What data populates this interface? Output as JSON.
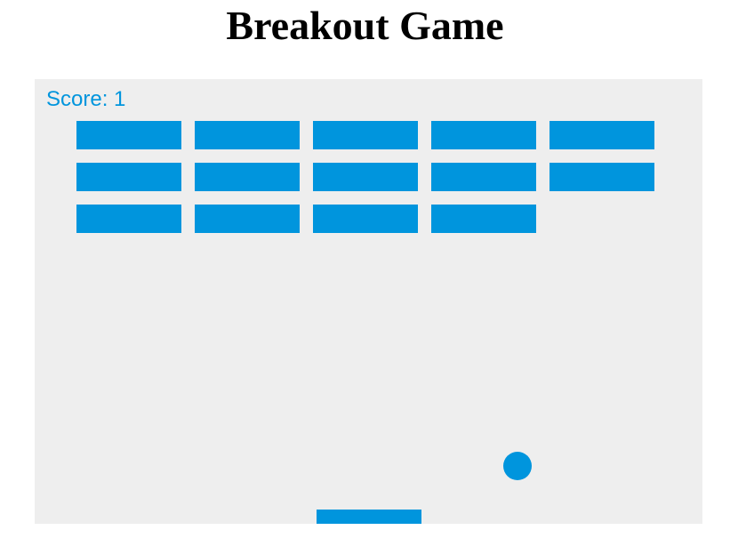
{
  "page": {
    "title": "Breakout Game"
  },
  "game": {
    "score_text": "Score: 1",
    "score": 1,
    "colors": {
      "accent": "#0095DD",
      "canvas_background": "#EEEEEE",
      "title_text": "#000000"
    },
    "bricks": {
      "columns": 5,
      "rows": 3,
      "intact": [
        [
          true,
          true,
          true,
          true,
          true
        ],
        [
          true,
          true,
          true,
          true,
          true
        ],
        [
          true,
          true,
          true,
          true,
          false
        ]
      ]
    }
  }
}
